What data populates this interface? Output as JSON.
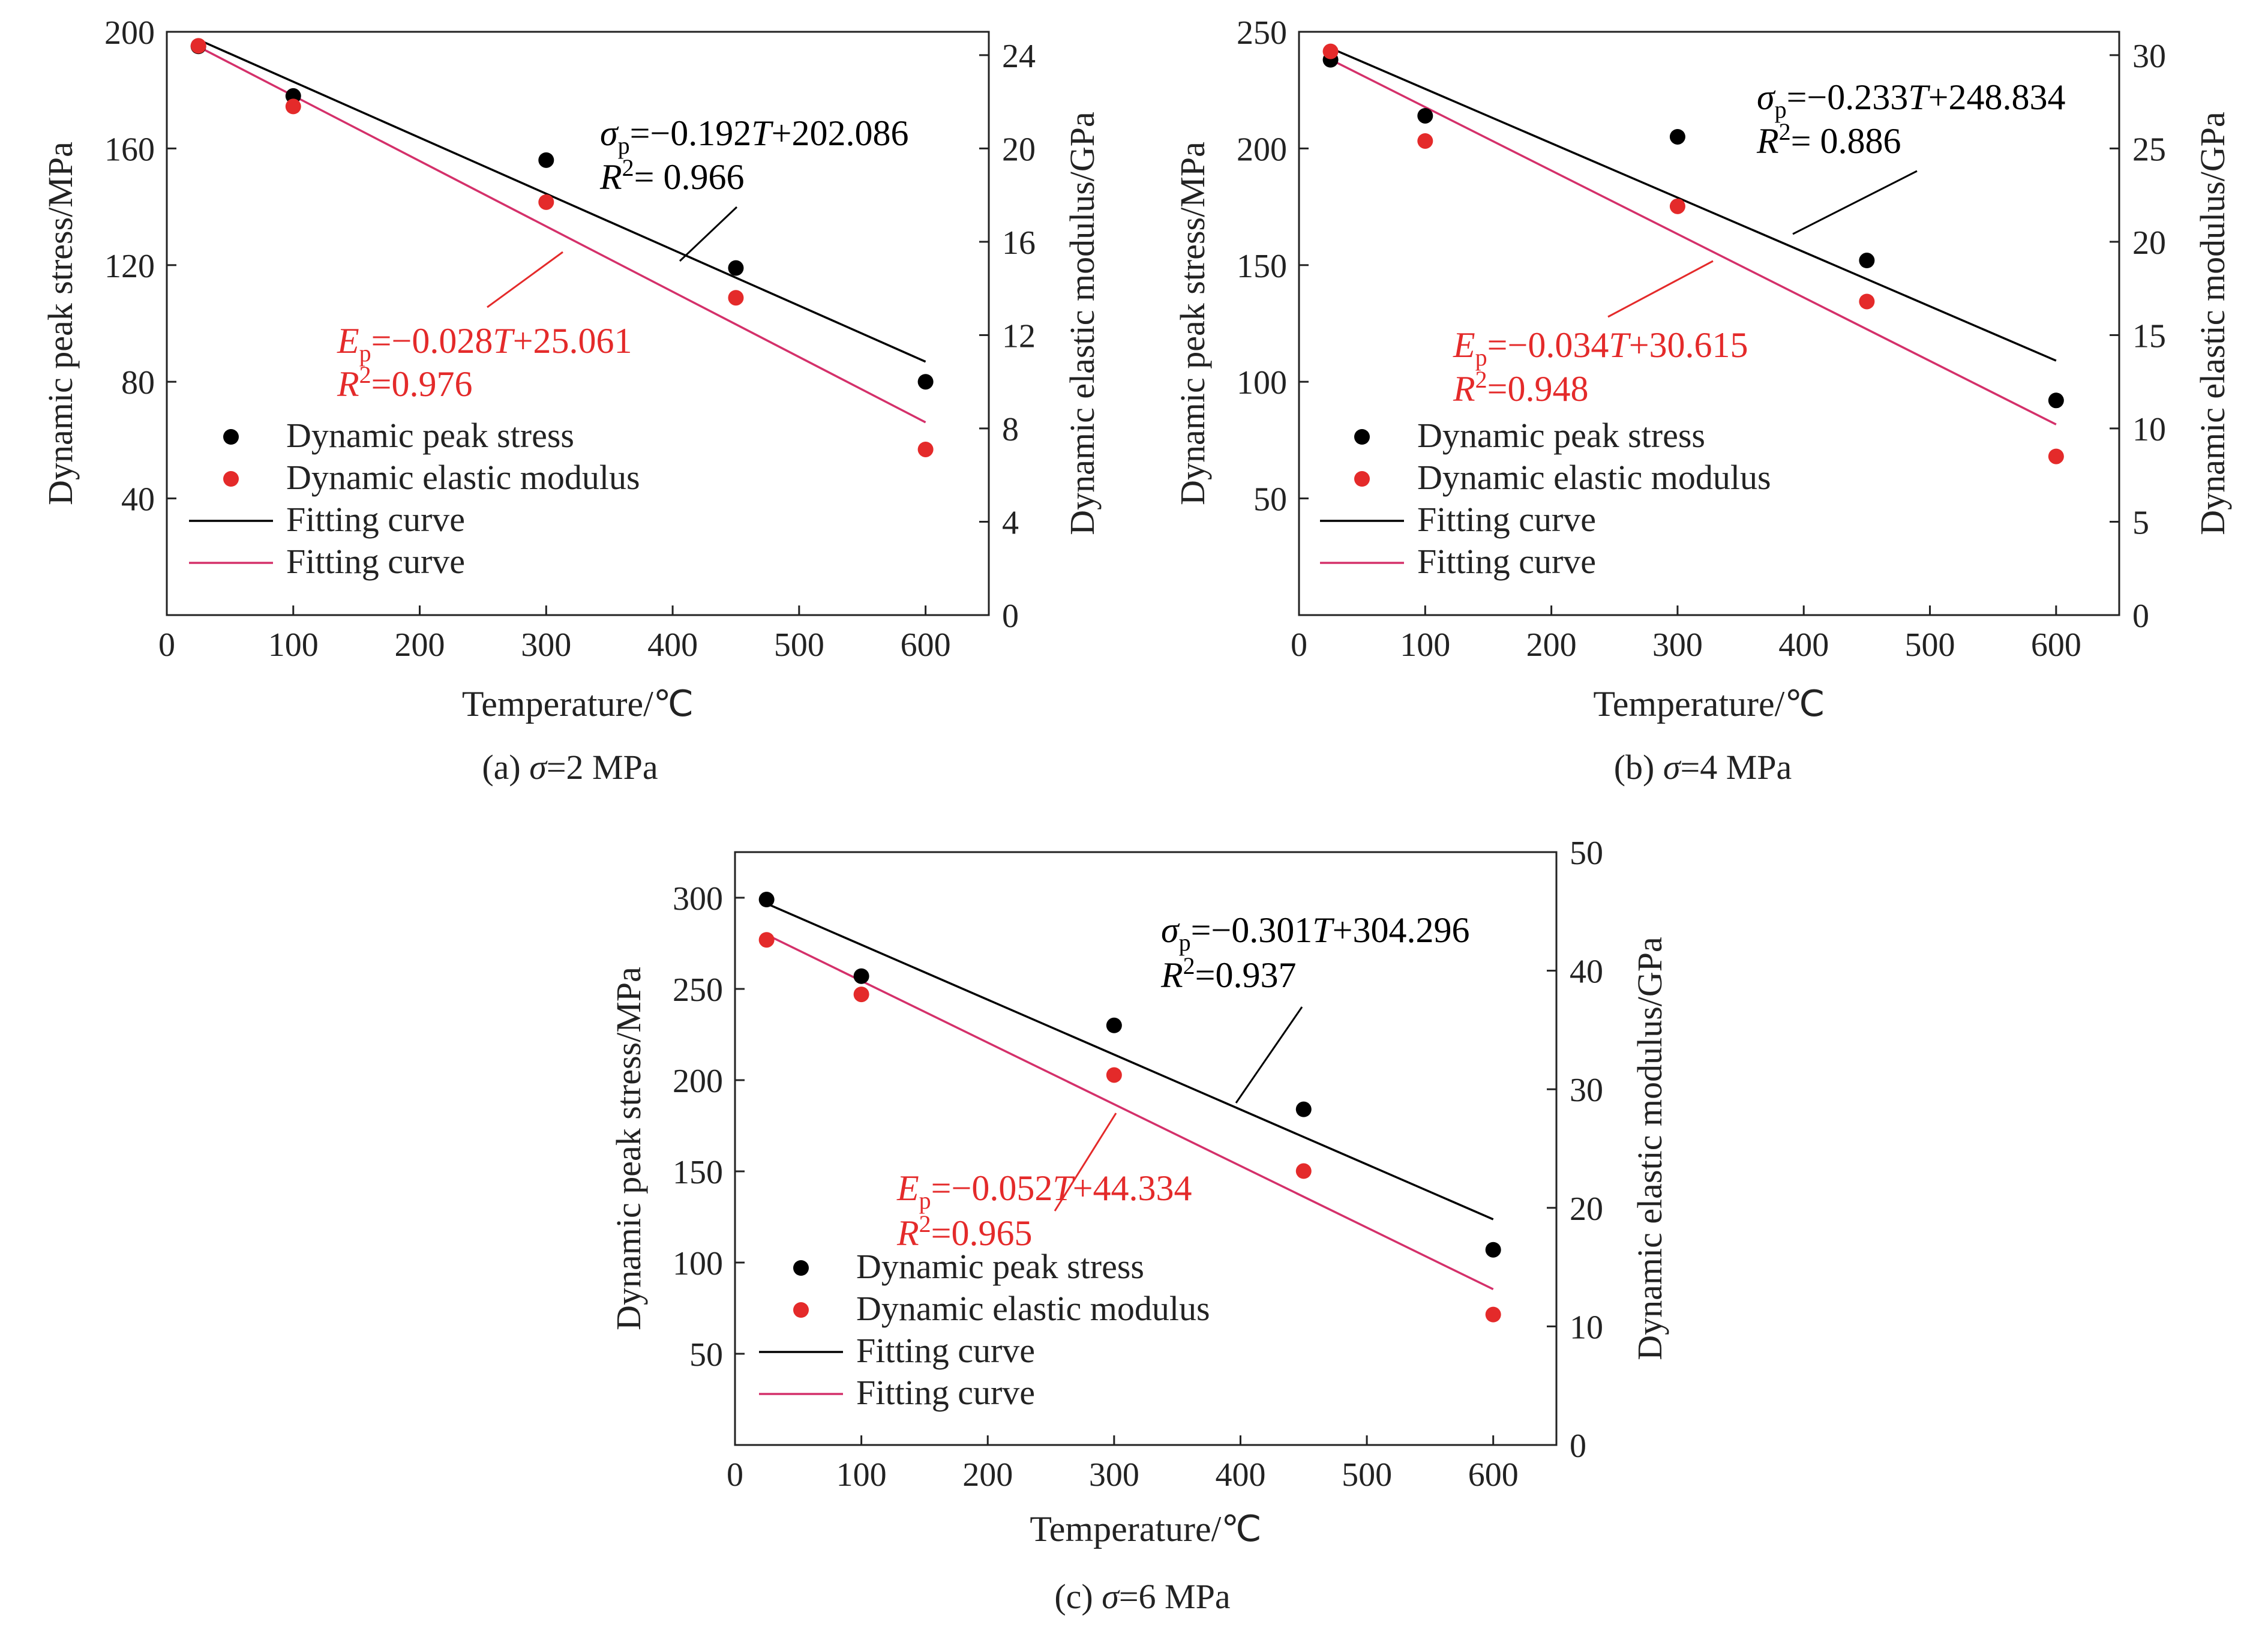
{
  "colors": {
    "stress": "#000000",
    "modulus": "#e42a2a",
    "fit_modulus": "#d4306a",
    "axis": "#222222"
  },
  "chart_data": [
    {
      "panel": "a",
      "type": "scatter",
      "caption": {
        "prefix": "(a) ",
        "sym": "σ",
        "rest": "=2 MPa"
      },
      "xlabel": "Temperature/℃",
      "ylabel_left": "Dynamic peak stress/MPa",
      "ylabel_right": "Dynamic elastic modulus/GPa",
      "xlim": [
        0,
        650
      ],
      "xticks": [
        0,
        100,
        200,
        300,
        400,
        500,
        600
      ],
      "ylim_left": [
        0,
        200
      ],
      "yticks_left": [
        40,
        80,
        120,
        160,
        200
      ],
      "ylim_right": [
        0,
        25
      ],
      "yticks_right": [
        0,
        4,
        8,
        12,
        16,
        20,
        24
      ],
      "series": [
        {
          "name": "Dynamic peak stress",
          "axis": "left",
          "x": [
            25,
            100,
            300,
            450,
            600
          ],
          "y": [
            195,
            178,
            156,
            119,
            80
          ]
        },
        {
          "name": "Dynamic elastic modulus",
          "axis": "right",
          "x": [
            25,
            100,
            300,
            450,
            600
          ],
          "y": [
            24.4,
            21.8,
            17.7,
            13.6,
            7.1
          ]
        }
      ],
      "fits": [
        {
          "name": "Fitting curve",
          "axis": "left",
          "slope": -0.192,
          "intercept": 202.086,
          "x_range": [
            25,
            600
          ],
          "eq": {
            "sym": "σ",
            "sub": "p",
            "rhs_a": "=−0.192",
            "var": "T",
            "rhs_b": "+202.086",
            "r2": "= 0.966"
          }
        },
        {
          "name": "Fitting curve",
          "axis": "right",
          "slope": -0.028,
          "intercept": 25.061,
          "x_range": [
            25,
            600
          ],
          "eq": {
            "sym": "E",
            "sub": "p",
            "rhs_a": "=−0.028",
            "var": "T",
            "rhs_b": "+25.061",
            "r2": "=0.976"
          }
        }
      ]
    },
    {
      "panel": "b",
      "type": "scatter",
      "caption": {
        "prefix": "(b) ",
        "sym": "σ",
        "rest": "=4 MPa"
      },
      "xlabel": "Temperature/℃",
      "ylabel_left": "Dynamic peak stress/MPa",
      "ylabel_right": "Dynamic elastic modulus/GPa",
      "xlim": [
        0,
        650
      ],
      "xticks": [
        0,
        100,
        200,
        300,
        400,
        500,
        600
      ],
      "ylim_left": [
        0,
        250
      ],
      "yticks_left": [
        50,
        100,
        150,
        200,
        250
      ],
      "ylim_right": [
        0,
        31.25
      ],
      "yticks_right": [
        0,
        5,
        10,
        15,
        20,
        25,
        30
      ],
      "series": [
        {
          "name": "Dynamic peak stress",
          "axis": "left",
          "x": [
            25,
            100,
            300,
            450,
            600
          ],
          "y": [
            238,
            214,
            205,
            152,
            92
          ]
        },
        {
          "name": "Dynamic elastic modulus",
          "axis": "right",
          "x": [
            25,
            100,
            300,
            450,
            600
          ],
          "y": [
            30.2,
            25.4,
            21.9,
            16.8,
            8.5
          ]
        }
      ],
      "fits": [
        {
          "name": "Fitting curve",
          "axis": "left",
          "slope": -0.233,
          "intercept": 248.834,
          "x_range": [
            25,
            600
          ],
          "eq": {
            "sym": "σ",
            "sub": "p",
            "rhs_a": "=−0.233",
            "var": "T",
            "rhs_b": "+248.834",
            "r2": "= 0.886"
          }
        },
        {
          "name": "Fitting curve",
          "axis": "right",
          "slope": -0.034,
          "intercept": 30.615,
          "x_range": [
            25,
            600
          ],
          "eq": {
            "sym": "E",
            "sub": "p",
            "rhs_a": "=−0.034",
            "var": "T",
            "rhs_b": "+30.615",
            "r2": "=0.948"
          }
        }
      ]
    },
    {
      "panel": "c",
      "type": "scatter",
      "caption": {
        "prefix": "(c) ",
        "sym": "σ",
        "rest": "=6 MPa"
      },
      "xlabel": "Temperature/℃",
      "ylabel_left": "Dynamic peak stress/MPa",
      "ylabel_right": "Dynamic elastic modulus/GPa",
      "xlim": [
        0,
        650
      ],
      "xticks": [
        0,
        100,
        200,
        300,
        400,
        500,
        600
      ],
      "ylim_left": [
        0,
        325
      ],
      "yticks_left": [
        50,
        100,
        150,
        200,
        250,
        300
      ],
      "ylim_right": [
        0,
        50
      ],
      "yticks_right": [
        0,
        10,
        20,
        30,
        40,
        50
      ],
      "series": [
        {
          "name": "Dynamic peak stress",
          "axis": "left",
          "x": [
            25,
            100,
            300,
            450,
            600
          ],
          "y": [
            299,
            257,
            230,
            184,
            107
          ]
        },
        {
          "name": "Dynamic elastic modulus",
          "axis": "right",
          "x": [
            25,
            100,
            300,
            450,
            600
          ],
          "y": [
            42.6,
            38.0,
            31.2,
            23.1,
            11.0
          ]
        }
      ],
      "fits": [
        {
          "name": "Fitting curve",
          "axis": "left",
          "slope": -0.301,
          "intercept": 304.296,
          "x_range": [
            25,
            600
          ],
          "eq": {
            "sym": "σ",
            "sub": "p",
            "rhs_a": "=−0.301",
            "var": "T",
            "rhs_b": "+304.296",
            "r2": "=0.937"
          }
        },
        {
          "name": "Fitting curve",
          "axis": "right",
          "slope": -0.052,
          "intercept": 44.334,
          "x_range": [
            25,
            600
          ],
          "eq": {
            "sym": "E",
            "sub": "p",
            "rhs_a": "=−0.052",
            "var": "T",
            "rhs_b": "+44.334",
            "r2": "=0.965"
          }
        }
      ]
    }
  ]
}
